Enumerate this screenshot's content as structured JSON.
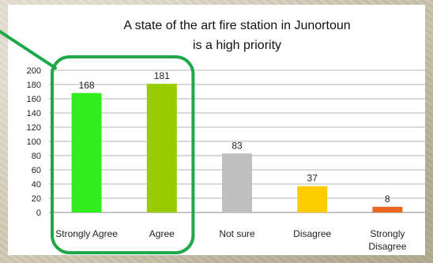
{
  "chart_data": {
    "type": "bar",
    "title_lines": [
      "A state of the art fire station in Junortoun",
      "is a high priority"
    ],
    "categories": [
      "Strongly Agree",
      "Agree",
      "Not sure",
      "Disagree",
      "Strongly Disagree"
    ],
    "category_lines": [
      [
        "Strongly Agree"
      ],
      [
        "Agree"
      ],
      [
        "Not sure"
      ],
      [
        "Disagree"
      ],
      [
        "Strongly",
        "Disagree"
      ]
    ],
    "values": [
      168,
      181,
      83,
      37,
      8
    ],
    "data_labels": [
      "168",
      "181",
      "83",
      "37",
      "8"
    ],
    "bar_colors": [
      "#33ee1f",
      "#99cc00",
      "#bfbfbf",
      "#ffcc00",
      "#e8661e"
    ],
    "ylim": [
      0,
      200
    ],
    "yticks": [
      0,
      20,
      40,
      60,
      80,
      100,
      120,
      140,
      160,
      180,
      200
    ],
    "grid": true,
    "xlabel": "",
    "ylabel": "",
    "highlight_color": "#1ea84a",
    "highlighted_categories": [
      "Strongly Agree",
      "Agree"
    ]
  }
}
